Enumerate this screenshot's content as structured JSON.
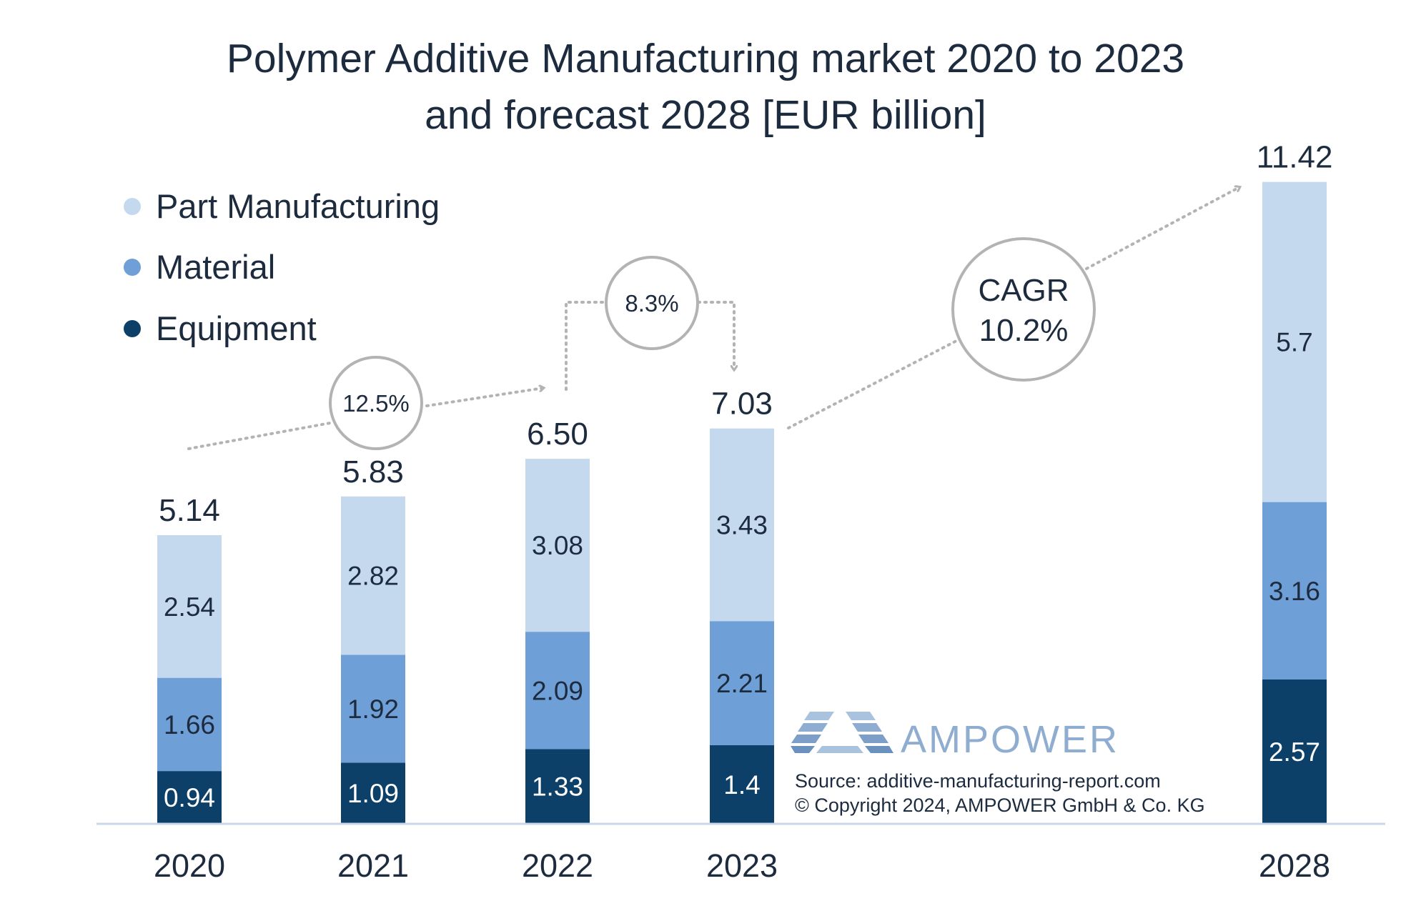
{
  "chart_data": {
    "type": "bar",
    "stacked": true,
    "title": "Polymer Additive Manufacturing market 2020 to 2023",
    "subtitle": "and forecast 2028 [EUR billion]",
    "categories": [
      "2020",
      "2021",
      "2022",
      "2023",
      "2028"
    ],
    "series": [
      {
        "name": "Equipment",
        "color": "#0d4068",
        "values": [
          0.94,
          1.09,
          1.33,
          1.4,
          2.57
        ],
        "labels": [
          "0.94",
          "1.09",
          "1.33",
          "1.4",
          "2.57"
        ]
      },
      {
        "name": "Material",
        "color": "#6e9fd6",
        "values": [
          1.66,
          1.92,
          2.09,
          2.21,
          3.16
        ],
        "labels": [
          "1.66",
          "1.92",
          "2.09",
          "2.21",
          "3.16"
        ]
      },
      {
        "name": "Part Manufacturing",
        "color": "#c5d9ee",
        "values": [
          2.54,
          2.82,
          3.08,
          3.43,
          5.7
        ],
        "labels": [
          "2.54",
          "2.82",
          "3.08",
          "3.43",
          "5.7"
        ]
      }
    ],
    "totals": [
      "5.14",
      "5.83",
      "6.50",
      "7.03",
      "11.42"
    ],
    "legend_order": [
      "Part Manufacturing",
      "Material",
      "Equipment"
    ],
    "legend_position": "top-left",
    "grid": false,
    "annotations": [
      {
        "text": "12.5%",
        "from": "2020",
        "to": "2022"
      },
      {
        "text": "8.3%",
        "from": "2022",
        "to": "2023"
      },
      {
        "label": "CAGR",
        "text": "10.2%",
        "from": "2023",
        "to": "2028"
      }
    ]
  },
  "logo": {
    "name": "AMPOWER"
  },
  "source": {
    "line1": "Source: additive-manufacturing-report.com",
    "line2": "© Copyright 2024, AMPOWER GmbH & Co. KG"
  },
  "colors": {
    "text": "#1d2b3e",
    "arrow": "#b3b3b3",
    "axis": "#c9d7e6",
    "logo": "#8fadd0"
  }
}
